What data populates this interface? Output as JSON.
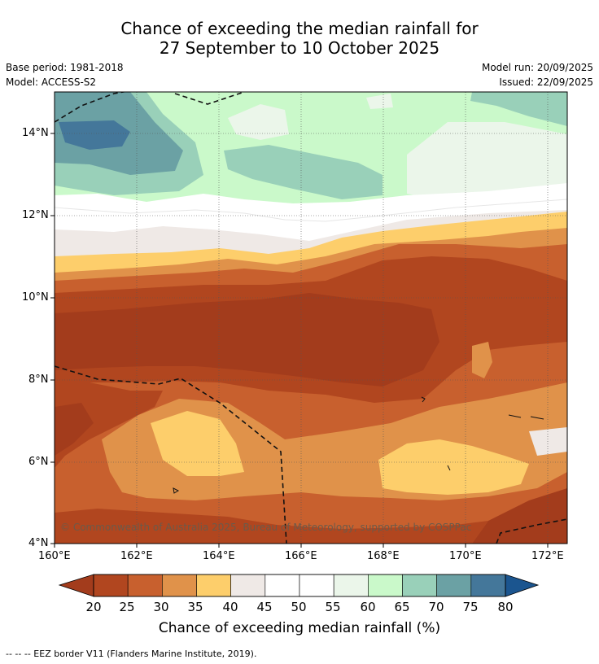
{
  "title": {
    "line1": "Chance of exceeding the median rainfall for",
    "line2": "27 September to 10 October 2025"
  },
  "meta": {
    "base_period": "Base period: 1981-2018",
    "model": "Model: ACCESS-S2",
    "model_run": "Model run: 20/09/2025",
    "issued": "Issued: 22/09/2025"
  },
  "map": {
    "lat_ticks": [
      "14°N",
      "12°N",
      "10°N",
      "8°N",
      "6°N",
      "4°N"
    ],
    "lon_ticks": [
      "160°E",
      "162°E",
      "164°E",
      "166°E",
      "168°E",
      "170°E",
      "172°E"
    ],
    "copyright": "© Commonwealth of Australia 2025, Bureau of Meteorology, supported by COSPPac"
  },
  "colorbar": {
    "labels": [
      "20",
      "25",
      "30",
      "35",
      "40",
      "45",
      "50",
      "55",
      "60",
      "65",
      "70",
      "75",
      "80"
    ],
    "colors": [
      "#a33c1c",
      "#b1461f",
      "#c8602e",
      "#e0924a",
      "#fdce6b",
      "#efe9e6",
      "#ffffff",
      "#ffffff",
      "#ebf6ea",
      "#caf9ca",
      "#99d0b9",
      "#6ba1a4",
      "#44779a",
      "#1b558f"
    ],
    "title": "Chance of exceeding median rainfall (%)"
  },
  "legend": {
    "eez_note": "--  --  -- EEZ border V11 (Flanders Marine Institute, 2019)."
  }
}
